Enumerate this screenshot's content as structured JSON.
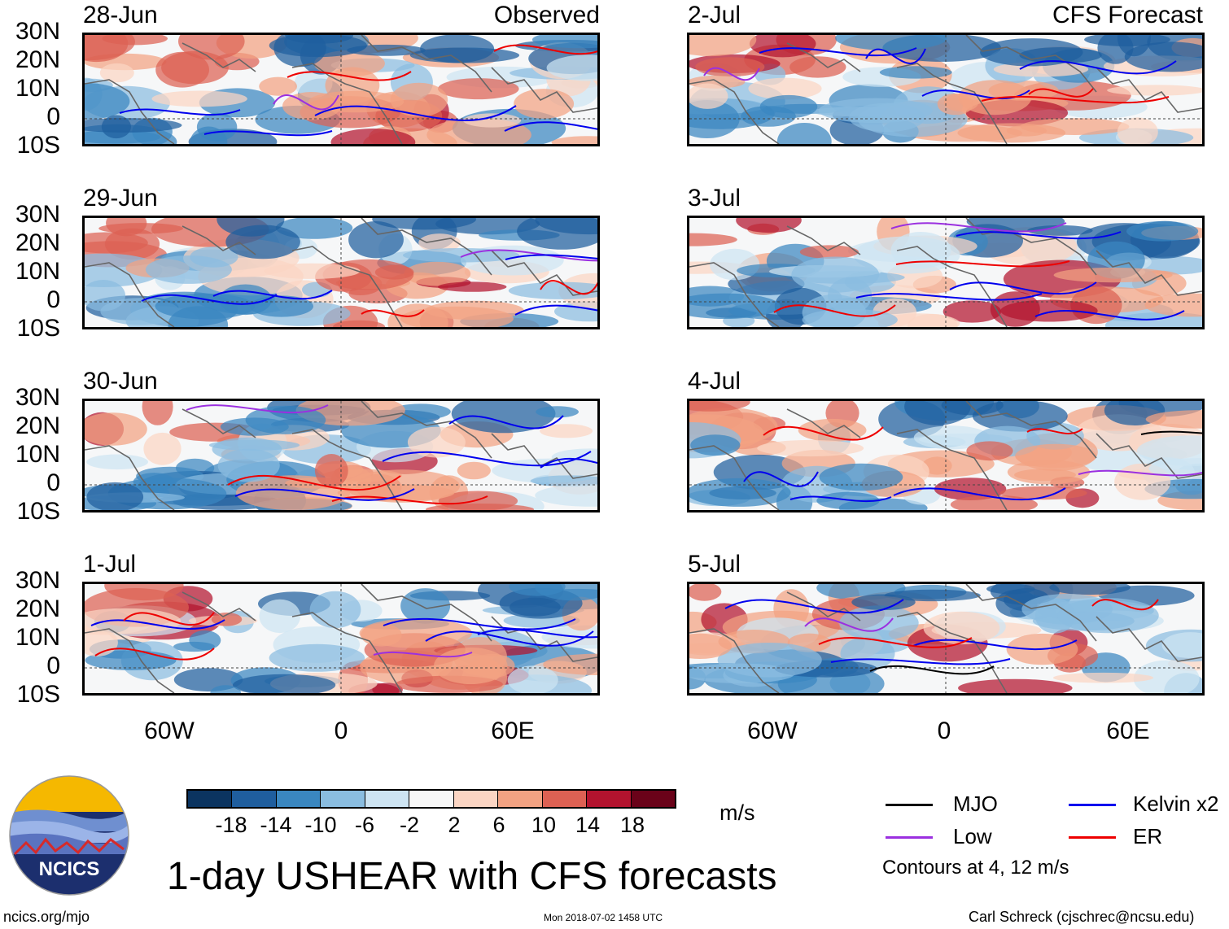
{
  "columns": [
    {
      "title": "Observed",
      "panels": [
        {
          "date": "28-Jun"
        },
        {
          "date": "29-Jun"
        },
        {
          "date": "30-Jun"
        },
        {
          "date": "1-Jul"
        }
      ]
    },
    {
      "title": "CFS Forecast",
      "panels": [
        {
          "date": "2-Jul"
        },
        {
          "date": "3-Jul"
        },
        {
          "date": "4-Jul"
        },
        {
          "date": "5-Jul"
        }
      ]
    }
  ],
  "axes": {
    "lat_labels": [
      "30N",
      "20N",
      "10N",
      "0",
      "10S"
    ],
    "lon_labels": [
      "60W",
      "0",
      "60E"
    ]
  },
  "colorbar": {
    "colors": [
      "#0b3460",
      "#1f5e9e",
      "#3a87c0",
      "#8abde0",
      "#cde4f2",
      "#f7f7f7",
      "#fbd5c3",
      "#f2a282",
      "#dd6153",
      "#b3132e",
      "#6a0219"
    ],
    "ticks": [
      "-18",
      "-14",
      "-10",
      "-6",
      "-2",
      "2",
      "6",
      "10",
      "14",
      "18"
    ],
    "units": "m/s"
  },
  "legend": {
    "items": [
      {
        "label": "MJO",
        "color": "#000000"
      },
      {
        "label": "Kelvin x2",
        "color": "#0000ee"
      },
      {
        "label": "Low",
        "color": "#9b30e0"
      },
      {
        "label": "ER",
        "color": "#ee0000"
      }
    ],
    "note": "Contours at 4, 12 m/s"
  },
  "title": "1-day USHEAR with CFS forecasts",
  "logo": {
    "text": "NCICS"
  },
  "footer": {
    "left": "ncics.org/mjo",
    "center": "Mon 2018-07-02 1458 UTC",
    "right": "Carl Schreck (cjschrec@ncsu.edu)"
  }
}
